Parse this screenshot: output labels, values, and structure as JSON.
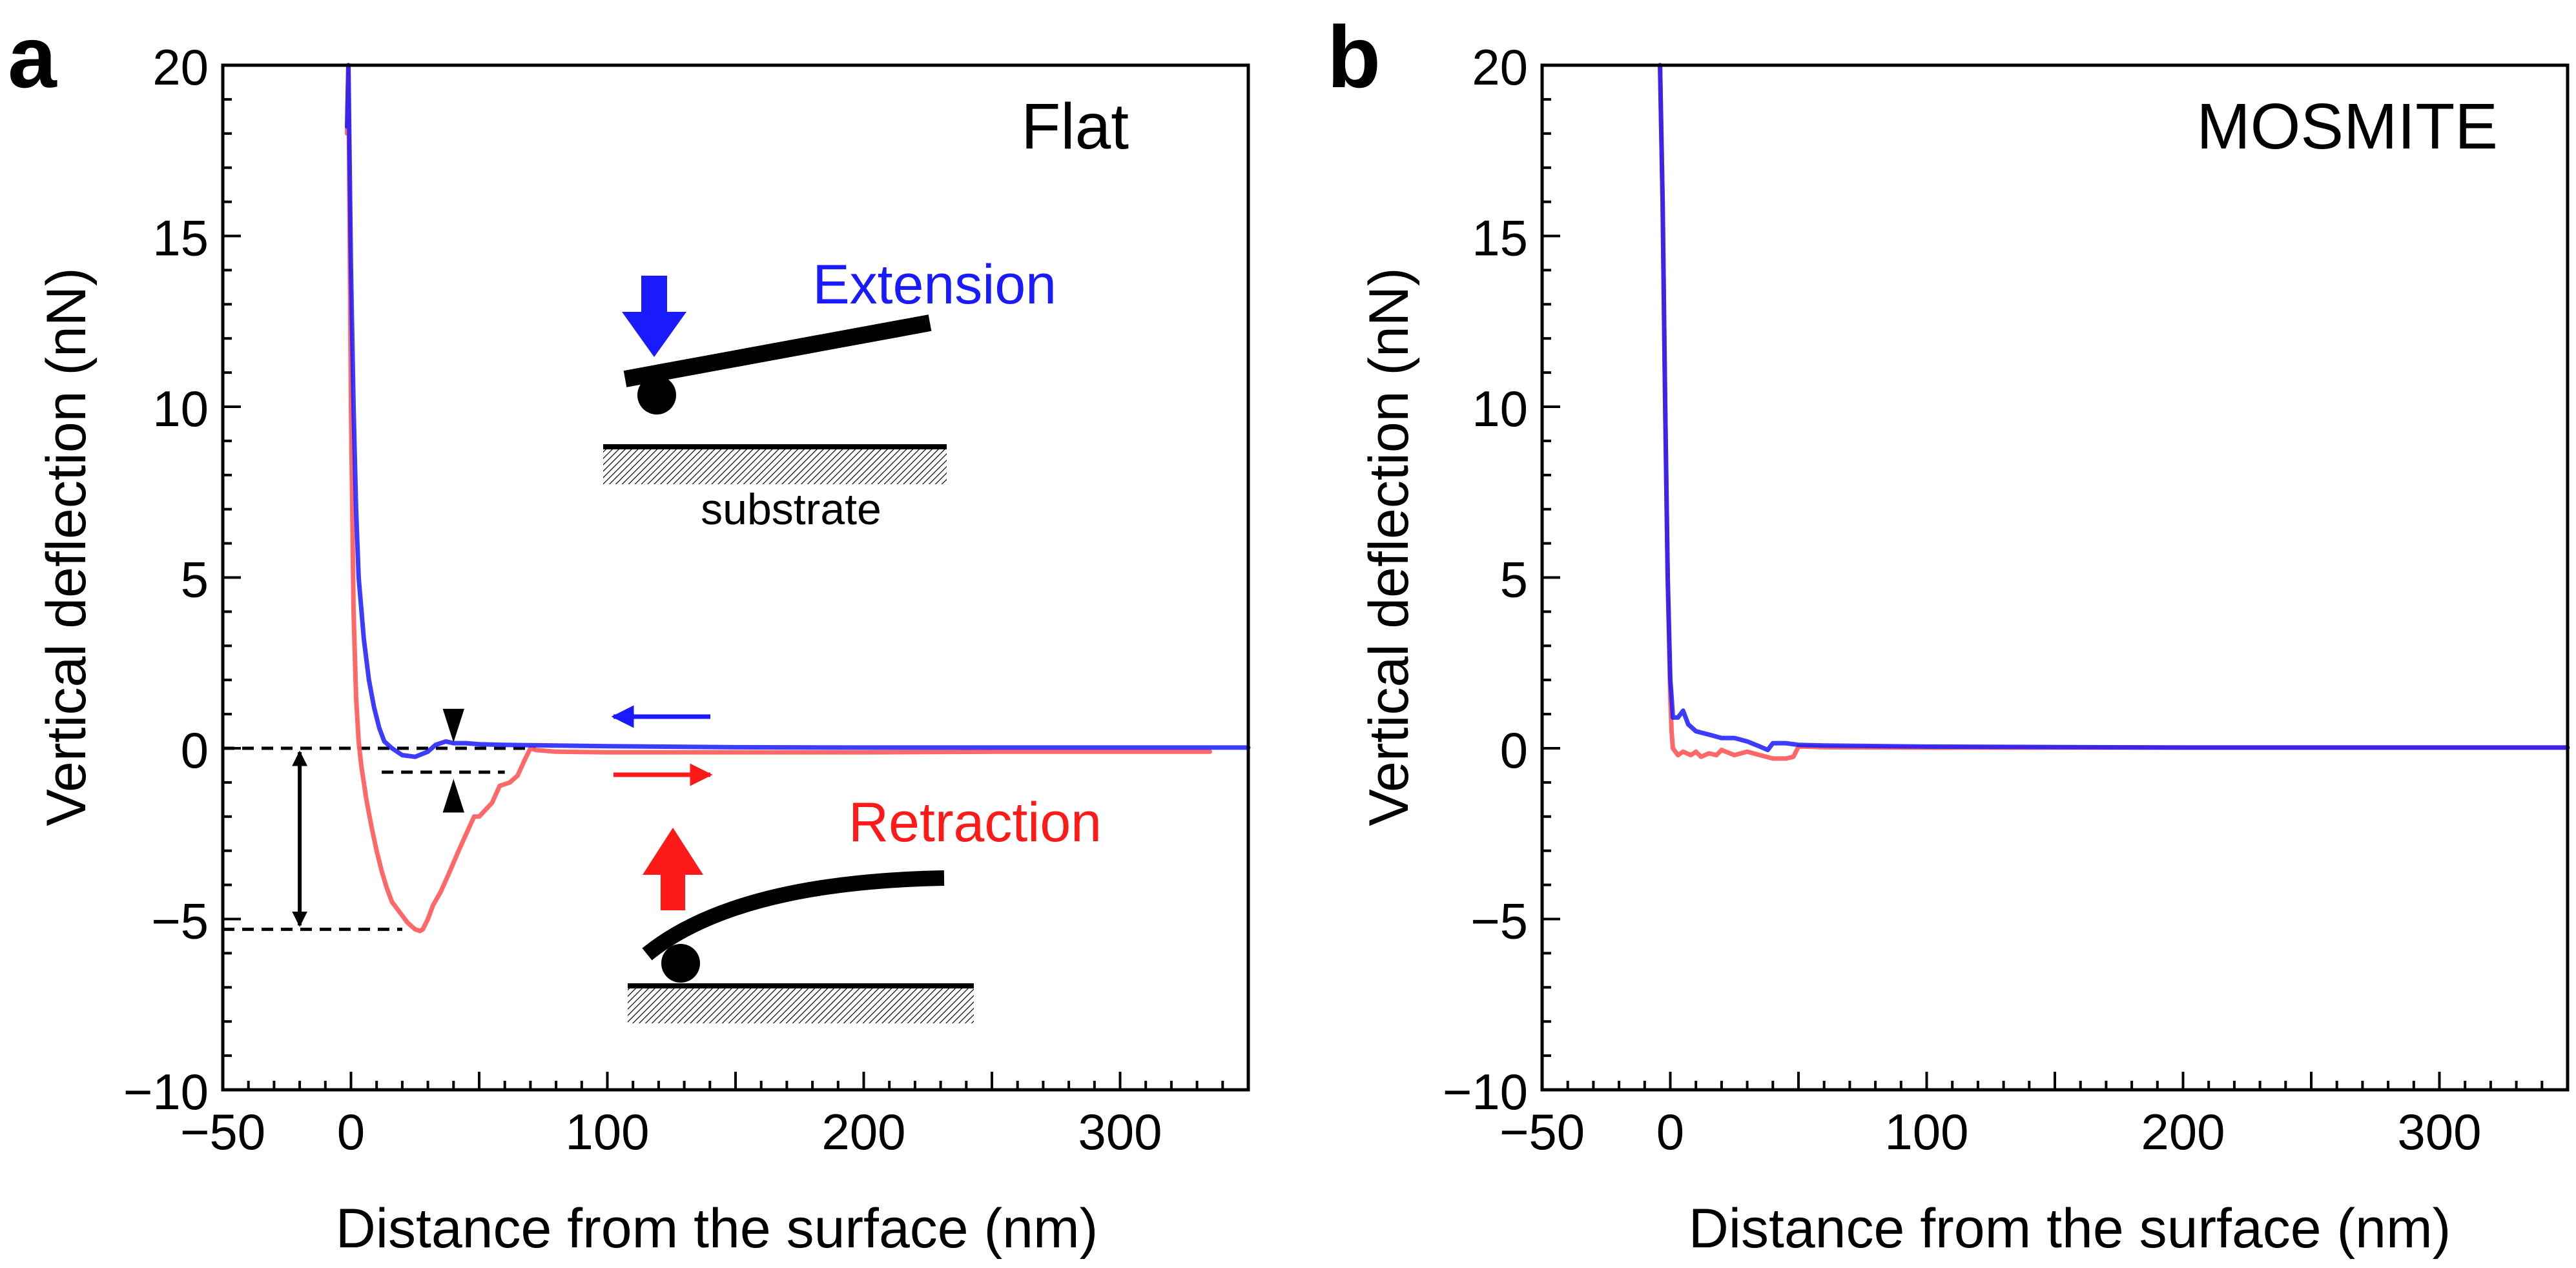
{
  "figure": {
    "panels": [
      {
        "letter": "a",
        "panel_label": "Flat",
        "legend": {
          "extension": "Extension",
          "retraction": "Retraction",
          "substrate": "substrate"
        }
      },
      {
        "letter": "b",
        "panel_label": "MOSMITE"
      }
    ]
  },
  "colors": {
    "extension": "#1a1aff",
    "retraction": "#ff6060",
    "retraction_arrow": "#ff1a1a",
    "overlap": "#9a2a7a",
    "axis": "#000000"
  },
  "chart_data": [
    {
      "type": "line",
      "title": "Flat",
      "xlabel": "Distance  from the surface (nm)",
      "ylabel": "Vertical deflection (nN)",
      "xlim": [
        -50,
        350
      ],
      "ylim": [
        -10,
        20
      ],
      "xticks": [
        -50,
        0,
        100,
        200,
        300
      ],
      "yticks": [
        -10,
        -5,
        0,
        5,
        10,
        15,
        20
      ],
      "xtick_labels": [
        "−50",
        "0",
        "100",
        "200",
        "300"
      ],
      "ytick_labels": [
        "−10",
        "−5",
        "0",
        "5",
        "10",
        "15",
        "20"
      ],
      "grid": false,
      "series": [
        {
          "name": "Extension",
          "x": [
            -1.5,
            -1,
            0,
            1,
            2,
            3,
            5,
            7,
            9,
            11,
            13,
            16,
            20,
            25,
            30,
            33,
            37,
            40,
            45,
            50,
            60,
            80,
            100,
            150,
            200,
            250,
            300,
            350
          ],
          "y": [
            18.2,
            20,
            14,
            10,
            7,
            5,
            3.2,
            2,
            1.2,
            0.6,
            0.2,
            0.0,
            -0.2,
            -0.25,
            -0.1,
            0.1,
            0.2,
            0.15,
            0.15,
            0.12,
            0.1,
            0.08,
            0.06,
            0.03,
            0.02,
            0.02,
            0.02,
            0.02
          ]
        },
        {
          "name": "Retraction",
          "x": [
            -1.5,
            -1,
            0,
            1,
            2,
            3,
            4,
            5,
            6,
            8,
            10,
            12,
            14,
            16,
            18,
            20,
            22,
            25,
            27,
            28,
            30,
            32,
            35,
            38,
            42,
            45,
            48,
            50,
            55,
            58,
            62,
            65,
            68,
            70,
            72,
            80,
            100,
            150,
            200,
            250,
            300,
            335
          ],
          "y": [
            18,
            20,
            10,
            4,
            1.5,
            0.2,
            -0.5,
            -1,
            -1.5,
            -2.3,
            -3,
            -3.6,
            -4.1,
            -4.5,
            -4.7,
            -4.9,
            -5.1,
            -5.3,
            -5.35,
            -5.3,
            -5.0,
            -4.6,
            -4.2,
            -3.7,
            -3.0,
            -2.5,
            -2.0,
            -2.0,
            -1.6,
            -1.1,
            -1.0,
            -0.8,
            -0.3,
            0.0,
            -0.05,
            -0.1,
            -0.12,
            -0.12,
            -0.12,
            -0.1,
            -0.1,
            -0.1
          ]
        }
      ],
      "annotations": [
        {
          "type": "dashed_line",
          "y": 0,
          "x_range": [
            -50,
            72
          ]
        },
        {
          "type": "dashed_line",
          "y": -5.3,
          "x_range": [
            -50,
            20
          ]
        },
        {
          "type": "dashed_line",
          "y": -0.7,
          "x_range": [
            12,
            60
          ]
        },
        {
          "type": "double_arrow",
          "x": -20,
          "y_range": [
            0,
            -5.3
          ]
        },
        {
          "type": "gap_arrows",
          "x": 40,
          "y_range": [
            0.2,
            -0.7
          ]
        }
      ]
    },
    {
      "type": "line",
      "title": "MOSMITE",
      "xlabel": "Distance  from the surface (nm)",
      "ylabel": "Vertical deflection (nN)",
      "xlim": [
        -50,
        350
      ],
      "ylim": [
        -10,
        20
      ],
      "xticks": [
        -50,
        0,
        100,
        200,
        300
      ],
      "yticks": [
        -10,
        -5,
        0,
        5,
        10,
        15,
        20
      ],
      "xtick_labels": [
        "−50",
        "0",
        "100",
        "200",
        "300"
      ],
      "ytick_labels": [
        "−10",
        "−5",
        "0",
        "5",
        "10",
        "15",
        "20"
      ],
      "grid": false,
      "series": [
        {
          "name": "Extension",
          "x": [
            -4,
            -3,
            -2,
            -1,
            0,
            0.5,
            1,
            3,
            5,
            7,
            10,
            15,
            20,
            25,
            30,
            35,
            38,
            40,
            45,
            50,
            60,
            100,
            200,
            300,
            350
          ],
          "y": [
            20,
            16,
            10,
            5,
            2,
            1.5,
            0.9,
            0.9,
            1.1,
            0.7,
            0.5,
            0.4,
            0.3,
            0.3,
            0.2,
            0.05,
            -0.05,
            0.15,
            0.15,
            0.1,
            0.08,
            0.05,
            0.02,
            0.02,
            0.02
          ]
        },
        {
          "name": "Retraction",
          "x": [
            -4,
            -3,
            -2,
            -1,
            0,
            0.5,
            1,
            3,
            5,
            8,
            10,
            12,
            15,
            18,
            20,
            25,
            30,
            35,
            40,
            45,
            48,
            50,
            52,
            60,
            100,
            200,
            300,
            350
          ],
          "y": [
            20,
            16,
            10,
            5,
            1.5,
            0.5,
            0,
            -0.2,
            -0.1,
            -0.2,
            -0.1,
            -0.25,
            -0.15,
            -0.2,
            -0.05,
            -0.2,
            -0.1,
            -0.2,
            -0.3,
            -0.3,
            -0.25,
            0.05,
            0.05,
            0.03,
            0.02,
            0.02,
            0.02,
            0.02
          ]
        }
      ]
    }
  ]
}
